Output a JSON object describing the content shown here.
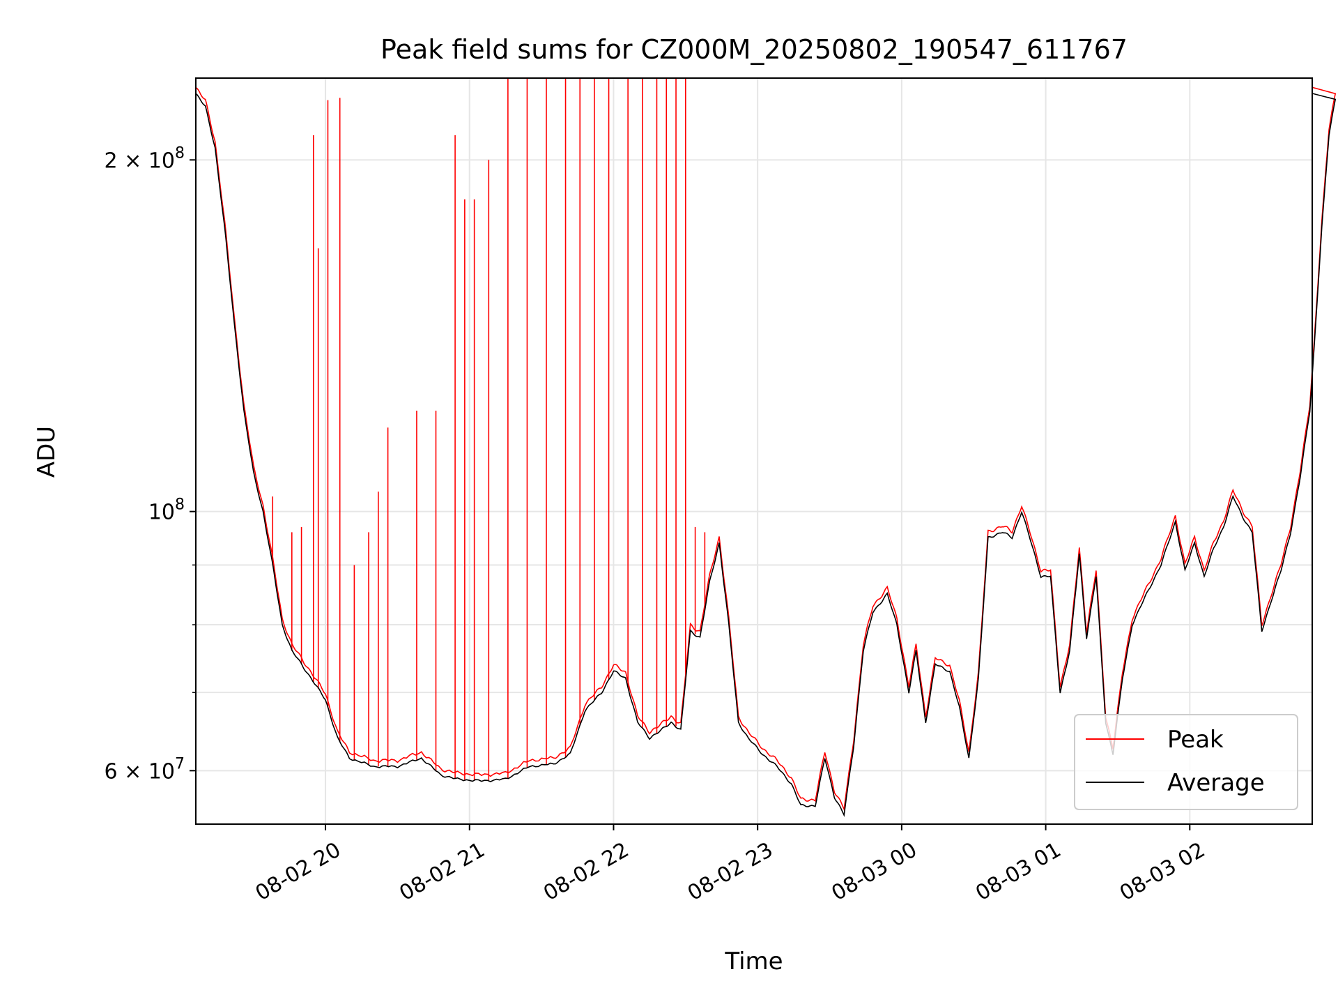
{
  "chart_data": {
    "type": "line",
    "title": "Peak field sums for CZ000M_20250802_190547_611767",
    "xlabel": "Time",
    "ylabel": "ADU",
    "y_scale": "log",
    "ylim": [
      54000000,
      235000000
    ],
    "xlim": [
      "2025-08-02 19:06",
      "2025-08-03 02:51"
    ],
    "grid": true,
    "legend_position": "bottom-right",
    "x_ticks": [
      {
        "value": "2025-08-02 20:00",
        "label": "08-02 20"
      },
      {
        "value": "2025-08-02 21:00",
        "label": "08-02 21"
      },
      {
        "value": "2025-08-02 22:00",
        "label": "08-02 22"
      },
      {
        "value": "2025-08-02 23:00",
        "label": "08-02 23"
      },
      {
        "value": "2025-08-03 00:00",
        "label": "08-03 00"
      },
      {
        "value": "2025-08-03 01:00",
        "label": "08-03 01"
      },
      {
        "value": "2025-08-03 02:00",
        "label": "08-03 02"
      }
    ],
    "y_major_ticks": [
      {
        "value": 60000000,
        "label_mantissa": "6",
        "label_exp": "7"
      },
      {
        "value": 100000000,
        "label_mantissa": "",
        "label_exp": "8"
      },
      {
        "value": 200000000,
        "label_mantissa": "2",
        "label_exp": "8"
      }
    ],
    "y_minor_ticks": [
      70000000,
      80000000,
      90000000
    ],
    "series": [
      {
        "name": "Average",
        "color": "#000000",
        "points": [
          [
            "2025-08-02 19:06",
            228000000
          ],
          [
            "2025-08-02 19:10",
            222000000
          ],
          [
            "2025-08-02 19:14",
            205000000
          ],
          [
            "2025-08-02 19:18",
            175000000
          ],
          [
            "2025-08-02 19:22",
            145000000
          ],
          [
            "2025-08-02 19:26",
            122000000
          ],
          [
            "2025-08-02 19:30",
            108000000
          ],
          [
            "2025-08-02 19:34",
            100000000
          ],
          [
            "2025-08-02 19:38",
            90000000
          ],
          [
            "2025-08-02 19:42",
            80000000
          ],
          [
            "2025-08-02 19:46",
            76000000
          ],
          [
            "2025-08-02 19:50",
            74000000
          ],
          [
            "2025-08-02 19:54",
            72000000
          ],
          [
            "2025-08-02 20:00",
            69000000
          ],
          [
            "2025-08-02 20:05",
            64000000
          ],
          [
            "2025-08-02 20:10",
            61500000
          ],
          [
            "2025-08-02 20:20",
            60500000
          ],
          [
            "2025-08-02 20:30",
            60500000
          ],
          [
            "2025-08-02 20:40",
            61500000
          ],
          [
            "2025-08-02 20:48",
            59500000
          ],
          [
            "2025-08-02 20:55",
            59000000
          ],
          [
            "2025-08-02 21:05",
            58800000
          ],
          [
            "2025-08-02 21:15",
            59000000
          ],
          [
            "2025-08-02 21:25",
            60500000
          ],
          [
            "2025-08-02 21:35",
            60800000
          ],
          [
            "2025-08-02 21:42",
            62000000
          ],
          [
            "2025-08-02 21:48",
            67500000
          ],
          [
            "2025-08-02 21:55",
            70000000
          ],
          [
            "2025-08-02 22:00",
            73000000
          ],
          [
            "2025-08-02 22:05",
            72000000
          ],
          [
            "2025-08-02 22:10",
            66000000
          ],
          [
            "2025-08-02 22:15",
            64000000
          ],
          [
            "2025-08-02 22:20",
            65000000
          ],
          [
            "2025-08-02 22:24",
            66000000
          ],
          [
            "2025-08-02 22:28",
            65000000
          ],
          [
            "2025-08-02 22:32",
            79000000
          ],
          [
            "2025-08-02 22:36",
            78000000
          ],
          [
            "2025-08-02 22:40",
            87000000
          ],
          [
            "2025-08-02 22:44",
            94000000
          ],
          [
            "2025-08-02 22:48",
            80000000
          ],
          [
            "2025-08-02 22:52",
            66000000
          ],
          [
            "2025-08-02 22:56",
            64000000
          ],
          [
            "2025-08-02 23:02",
            62000000
          ],
          [
            "2025-08-02 23:08",
            60500000
          ],
          [
            "2025-08-02 23:14",
            58500000
          ],
          [
            "2025-08-02 23:18",
            56000000
          ],
          [
            "2025-08-02 23:24",
            56000000
          ],
          [
            "2025-08-02 23:28",
            61500000
          ],
          [
            "2025-08-02 23:32",
            57000000
          ],
          [
            "2025-08-02 23:36",
            55000000
          ],
          [
            "2025-08-02 23:40",
            63000000
          ],
          [
            "2025-08-02 23:44",
            76000000
          ],
          [
            "2025-08-02 23:48",
            82000000
          ],
          [
            "2025-08-02 23:54",
            85000000
          ],
          [
            "2025-08-02 23:58",
            80000000
          ],
          [
            "2025-08-03 00:03",
            70000000
          ],
          [
            "2025-08-03 00:06",
            76000000
          ],
          [
            "2025-08-03 00:10",
            66000000
          ],
          [
            "2025-08-03 00:14",
            74000000
          ],
          [
            "2025-08-03 00:20",
            73000000
          ],
          [
            "2025-08-03 00:24",
            68000000
          ],
          [
            "2025-08-03 00:28",
            61500000
          ],
          [
            "2025-08-03 00:32",
            72000000
          ],
          [
            "2025-08-03 00:36",
            95000000
          ],
          [
            "2025-08-03 00:42",
            96000000
          ],
          [
            "2025-08-03 00:46",
            95000000
          ],
          [
            "2025-08-03 00:50",
            100000000
          ],
          [
            "2025-08-03 00:54",
            94000000
          ],
          [
            "2025-08-03 00:58",
            88000000
          ],
          [
            "2025-08-03 01:02",
            88000000
          ],
          [
            "2025-08-03 01:06",
            70000000
          ],
          [
            "2025-08-03 01:10",
            76000000
          ],
          [
            "2025-08-03 01:14",
            92000000
          ],
          [
            "2025-08-03 01:17",
            78000000
          ],
          [
            "2025-08-03 01:21",
            88000000
          ],
          [
            "2025-08-03 01:25",
            66000000
          ],
          [
            "2025-08-03 01:28",
            62000000
          ],
          [
            "2025-08-03 01:32",
            72000000
          ],
          [
            "2025-08-03 01:36",
            80000000
          ],
          [
            "2025-08-03 01:42",
            85000000
          ],
          [
            "2025-08-03 01:48",
            90000000
          ],
          [
            "2025-08-03 01:54",
            98000000
          ],
          [
            "2025-08-03 01:58",
            89000000
          ],
          [
            "2025-08-03 02:02",
            94000000
          ],
          [
            "2025-08-03 02:06",
            88000000
          ],
          [
            "2025-08-03 02:10",
            93000000
          ],
          [
            "2025-08-03 02:14",
            97000000
          ],
          [
            "2025-08-03 02:18",
            103000000
          ],
          [
            "2025-08-03 02:22",
            99000000
          ],
          [
            "2025-08-03 02:26",
            96000000
          ],
          [
            "2025-08-03 02:30",
            79000000
          ],
          [
            "2025-08-03 02:34",
            84000000
          ],
          [
            "2025-08-03 02:38",
            89000000
          ],
          [
            "2025-08-03 02:42",
            96000000
          ],
          [
            "2025-08-03 02:46",
            107000000
          ],
          [
            "2025-08-03 02:50",
            122000000
          ],
          [
            "2025-08-03 02:52",
            140000000
          ],
          [
            "2025-08-03 02:55",
            175000000
          ],
          [
            "2025-08-03 02:58",
            210000000
          ],
          [
            "2025-08-03 03:01",
            228000000
          ]
        ]
      },
      {
        "name": "Peak",
        "color": "#ff0000",
        "spikes": [
          [
            "2025-08-02 19:38",
            103000000
          ],
          [
            "2025-08-02 19:46",
            96000000
          ],
          [
            "2025-08-02 19:50",
            97000000
          ],
          [
            "2025-08-02 19:55",
            210000000
          ],
          [
            "2025-08-02 19:57",
            168000000
          ],
          [
            "2025-08-02 20:01",
            225000000
          ],
          [
            "2025-08-02 20:06",
            226000000
          ],
          [
            "2025-08-02 20:12",
            90000000
          ],
          [
            "2025-08-02 20:18",
            96000000
          ],
          [
            "2025-08-02 20:22",
            104000000
          ],
          [
            "2025-08-02 20:26",
            118000000
          ],
          [
            "2025-08-02 20:38",
            122000000
          ],
          [
            "2025-08-02 20:46",
            122000000
          ],
          [
            "2025-08-02 20:54",
            210000000
          ],
          [
            "2025-08-02 20:58",
            185000000
          ],
          [
            "2025-08-02 21:02",
            185000000
          ],
          [
            "2025-08-02 21:08",
            200000000
          ],
          [
            "2025-08-02 21:16",
            235000000
          ],
          [
            "2025-08-02 21:24",
            235000000
          ],
          [
            "2025-08-02 21:32",
            235000000
          ],
          [
            "2025-08-02 21:40",
            235000000
          ],
          [
            "2025-08-02 21:46",
            235000000
          ],
          [
            "2025-08-02 21:52",
            235000000
          ],
          [
            "2025-08-02 21:58",
            235000000
          ],
          [
            "2025-08-02 22:06",
            235000000
          ],
          [
            "2025-08-02 22:12",
            235000000
          ],
          [
            "2025-08-02 22:18",
            235000000
          ],
          [
            "2025-08-02 22:22",
            235000000
          ],
          [
            "2025-08-02 22:26",
            235000000
          ],
          [
            "2025-08-02 22:30",
            235000000
          ],
          [
            "2025-08-02 22:34",
            97000000
          ],
          [
            "2025-08-02 22:38",
            96000000
          ]
        ]
      }
    ]
  },
  "legend": [
    {
      "label": "Peak",
      "color": "#ff0000"
    },
    {
      "label": "Average",
      "color": "#000000"
    }
  ]
}
